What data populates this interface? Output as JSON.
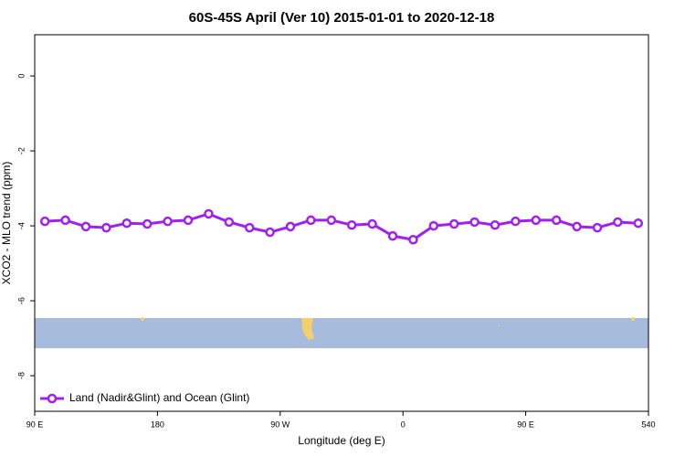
{
  "chart_data": {
    "type": "line",
    "title": "60S-45S April (Ver 10)   2015-01-01 to 2020-12-18",
    "x_label": "Longitude (deg E)",
    "y_label": "XCO2 - MLO trend (ppm)",
    "x": [
      97.5,
      112.5,
      127.5,
      142.5,
      157.5,
      172.5,
      187.5,
      202.5,
      217.5,
      232.5,
      247.5,
      262.5,
      277.5,
      292.5,
      307.5,
      322.5,
      337.5,
      352.5,
      367.5,
      382.5,
      397.5,
      412.5,
      427.5,
      442.5,
      457.5,
      472.5,
      487.5,
      502.5,
      517.5,
      532.5
    ],
    "series": [
      {
        "name": "Land (Nadir&Glint) and Ocean (Glint)",
        "color": "#a020f0",
        "values": [
          -3.88,
          -3.85,
          -4.02,
          -4.05,
          -3.93,
          -3.95,
          -3.88,
          -3.85,
          -3.68,
          -3.9,
          -4.05,
          -4.17,
          -4.02,
          -3.85,
          -3.85,
          -3.98,
          -3.95,
          -4.27,
          -4.37,
          -4.0,
          -3.95,
          -3.9,
          -3.98,
          -3.88,
          -3.85,
          -3.85,
          -4.02,
          -4.05,
          -3.9,
          -3.93
        ]
      }
    ],
    "xlim": [
      90,
      540
    ],
    "xticks": [
      {
        "value": 90,
        "label": "90 E"
      },
      180,
      {
        "value": 270,
        "label": "90 W"
      },
      {
        "value": 360,
        "label": "0"
      },
      {
        "value": 450,
        "label": "90 E"
      },
      540
    ],
    "ylim": [
      -8.95,
      1.1
    ],
    "yticks": [
      0,
      -2,
      -4,
      -6,
      -8
    ],
    "legend": "bottom-left"
  }
}
